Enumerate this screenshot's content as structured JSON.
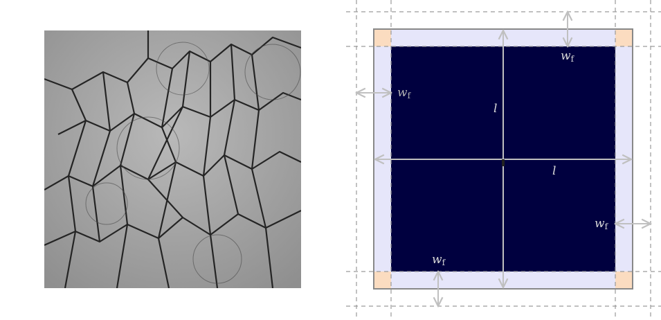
{
  "figure": {
    "left_panel": {
      "kind": "photo",
      "subject": "foam-bubbles"
    },
    "right_panel": {
      "kind": "schematic",
      "labels": {
        "length_symbol": "l",
        "film_symbol": "w",
        "film_subscript": "f"
      },
      "colors": {
        "core": "#00003f",
        "frame": "#e6e6fa",
        "corner": "#fbdcc0",
        "outline": "#888888",
        "arrow": "#c0c0c0",
        "dashed": "#9a9a9a"
      }
    }
  }
}
